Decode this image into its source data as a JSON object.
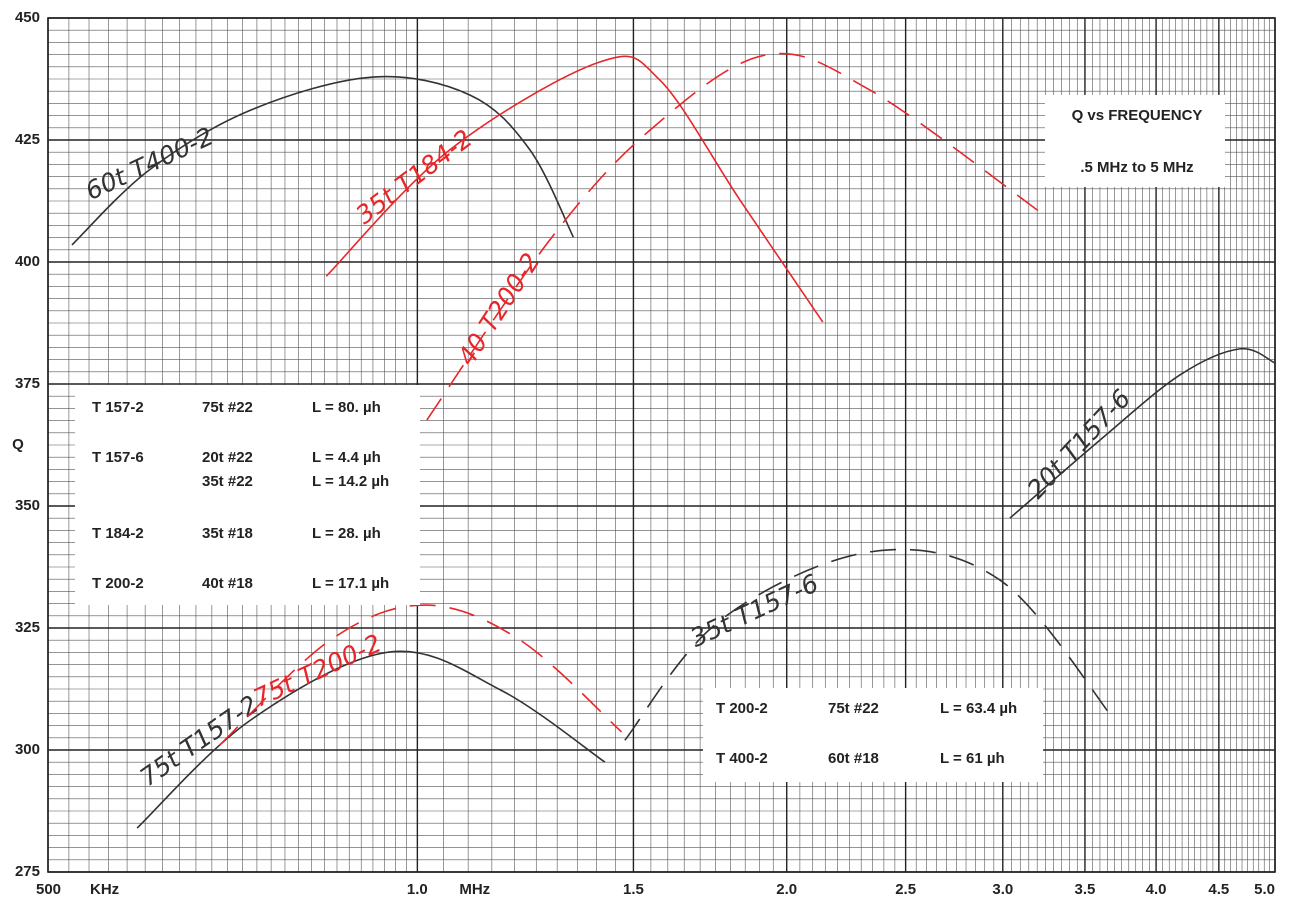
{
  "chart_data": {
    "type": "line",
    "x_log_scale": true,
    "ylabel": "Q",
    "x_unit_labels": [
      "KHz",
      "MHz"
    ],
    "xlim": [
      0.5,
      5
    ],
    "ylim": [
      275,
      450
    ],
    "xticks": [
      {
        "value": 0.5,
        "label": "500"
      },
      {
        "value": 1,
        "label": "1.0"
      },
      1.5,
      {
        "value": 2,
        "label": "2.0"
      },
      2.5,
      {
        "value": 3,
        "label": "3.0"
      },
      3.5,
      {
        "value": 4,
        "label": "4.0"
      },
      4.5,
      {
        "value": 5,
        "label": "5.0"
      }
    ],
    "yticks": [
      275,
      300,
      325,
      350,
      375,
      400,
      425,
      450
    ],
    "grid": true,
    "annotations": [
      "Q vs FREQUENCY",
      ".5 MHz to 5 MHz"
    ],
    "tables": [
      {
        "rows": [
          [
            "T 157-2",
            "75t #22",
            "L = 80.  µh"
          ],
          [
            "T 157-6",
            "20t #22",
            "L =  4.4 µh"
          ],
          [
            null,
            "35t #22",
            "L = 14.2 µh"
          ],
          [
            "T 184-2",
            "35t #18",
            "L = 28.  µh"
          ],
          [
            "T 200-2",
            "40t #18",
            "L = 17.1 µh"
          ]
        ]
      },
      {
        "rows": [
          [
            "T 200-2",
            "75t #22",
            "L = 63.4 µh"
          ],
          [
            "T 400-2",
            "60t #18",
            "L = 61  µh"
          ]
        ]
      }
    ],
    "series": [
      {
        "name": "60t T400-2",
        "color": "#333333",
        "dashed": false,
        "x": [
          0.523,
          0.605,
          0.731,
          0.92,
          1.104,
          1.235,
          1.34
        ],
        "values": [
          403.5,
          418.9,
          431.1,
          437.9,
          434.2,
          423,
          405.1
        ]
      },
      {
        "name": "35t T184-2",
        "color": "#e8262a",
        "dashed": false,
        "x": [
          0.843,
          1.063,
          1.409,
          1.576,
          1.832,
          2.14
        ],
        "values": [
          397.1,
          423,
          441,
          437.3,
          412.7,
          387.7
        ]
      },
      {
        "name": "40 T200-2",
        "color": "#e8262a",
        "dashed": true,
        "x": [
          1.018,
          1.282,
          1.547,
          1.921,
          2.339,
          3.219
        ],
        "values": [
          367.6,
          404.5,
          427,
          442.4,
          435.2,
          410.2
        ]
      },
      {
        "name": "20t T157-6",
        "color": "#333333",
        "dashed": false,
        "x": [
          3.04,
          3.6,
          4.18,
          4.68,
          5
        ],
        "values": [
          347.5,
          363.5,
          376.8,
          382.2,
          379.3
        ]
      },
      {
        "name": "35t T157-6",
        "color": "#333333",
        "dashed": true,
        "x": [
          1.476,
          1.766,
          2.339,
          2.985,
          3.7
        ],
        "values": [
          302,
          326.6,
          340.6,
          334.8,
          306.1
        ]
      },
      {
        "name": "75t T157-2",
        "color": "#333333",
        "dashed": false,
        "x": [
          0.591,
          0.731,
          0.95,
          1.169,
          1.422
        ],
        "values": [
          284,
          306.1,
          320.1,
          312.3,
          297.5
        ]
      },
      {
        "name": "75t T200-2",
        "color": "#e8262a",
        "dashed": true,
        "x": [
          0.69,
          0.849,
          1.014,
          1.213,
          1.467
        ],
        "values": [
          301,
          322.5,
          329.7,
          322.5,
          303.7
        ]
      }
    ]
  }
}
